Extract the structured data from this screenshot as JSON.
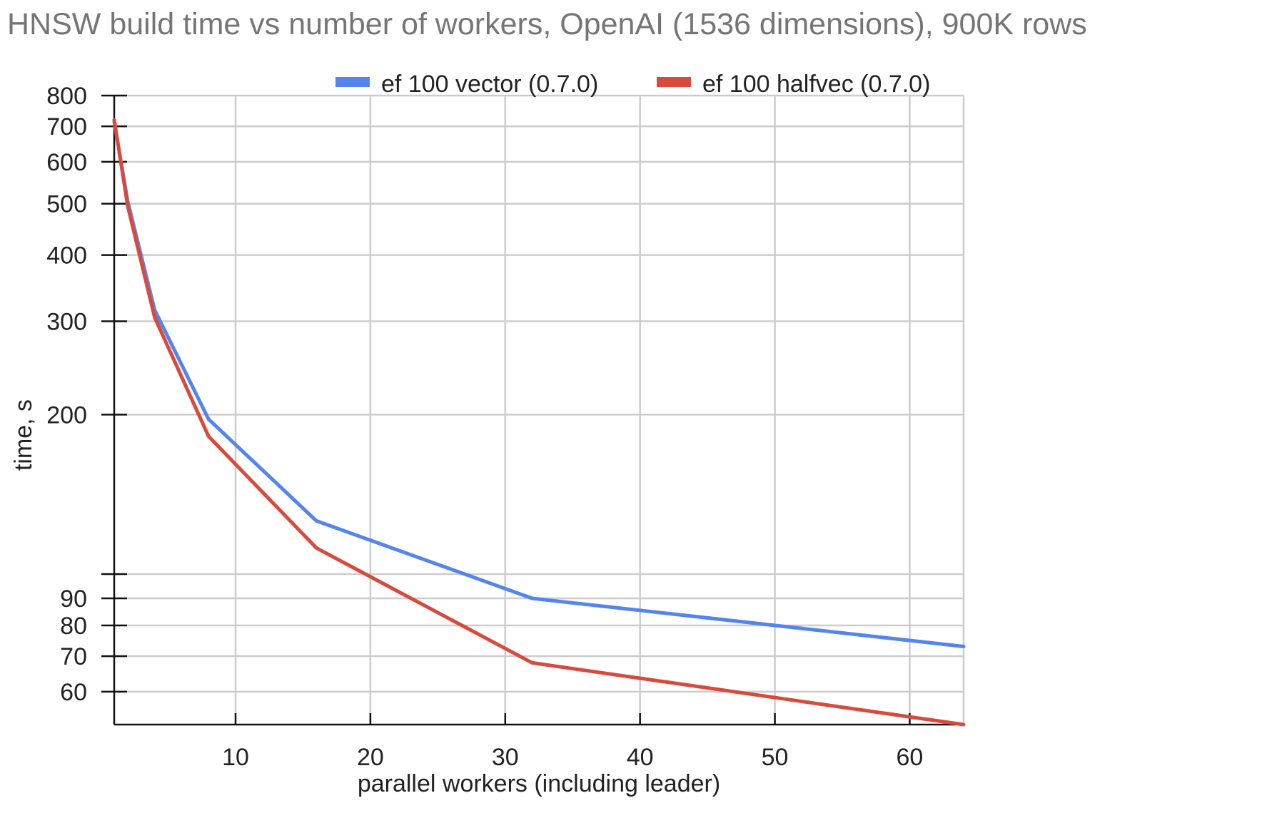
{
  "chart_data": {
    "type": "line",
    "title": "HNSW build time vs number of workers, OpenAI (1536 dimensions), 900K rows",
    "xlabel": "parallel workers (including leader)",
    "ylabel": "time, s",
    "x_scale": "linear",
    "y_scale": "log",
    "xlim": [
      1,
      64
    ],
    "ylim": [
      52,
      800
    ],
    "x_ticks": [
      10,
      20,
      30,
      40,
      50,
      60
    ],
    "x_tick_labels": [
      "10",
      "20",
      "30",
      "40",
      "50",
      "60"
    ],
    "y_ticks": [
      60,
      70,
      80,
      90,
      100,
      200,
      300,
      400,
      500,
      600,
      700,
      800
    ],
    "y_tick_labels": [
      "60",
      "70",
      "80",
      "90",
      "",
      "200",
      "300",
      "400",
      "500",
      "600",
      "700",
      "800"
    ],
    "grid": true,
    "legend_position": "top",
    "x": [
      1,
      2,
      4,
      8,
      16,
      32,
      64
    ],
    "series": [
      {
        "name": "ef 100 vector (0.7.0)",
        "color": "#5484ed",
        "values": [
          715,
          505,
          315,
          196,
          126,
          90,
          73
        ]
      },
      {
        "name": "ef 100 halfvec (0.7.0)",
        "color": "#d9493c",
        "values": [
          720,
          495,
          305,
          182,
          112,
          68,
          52
        ]
      }
    ]
  }
}
